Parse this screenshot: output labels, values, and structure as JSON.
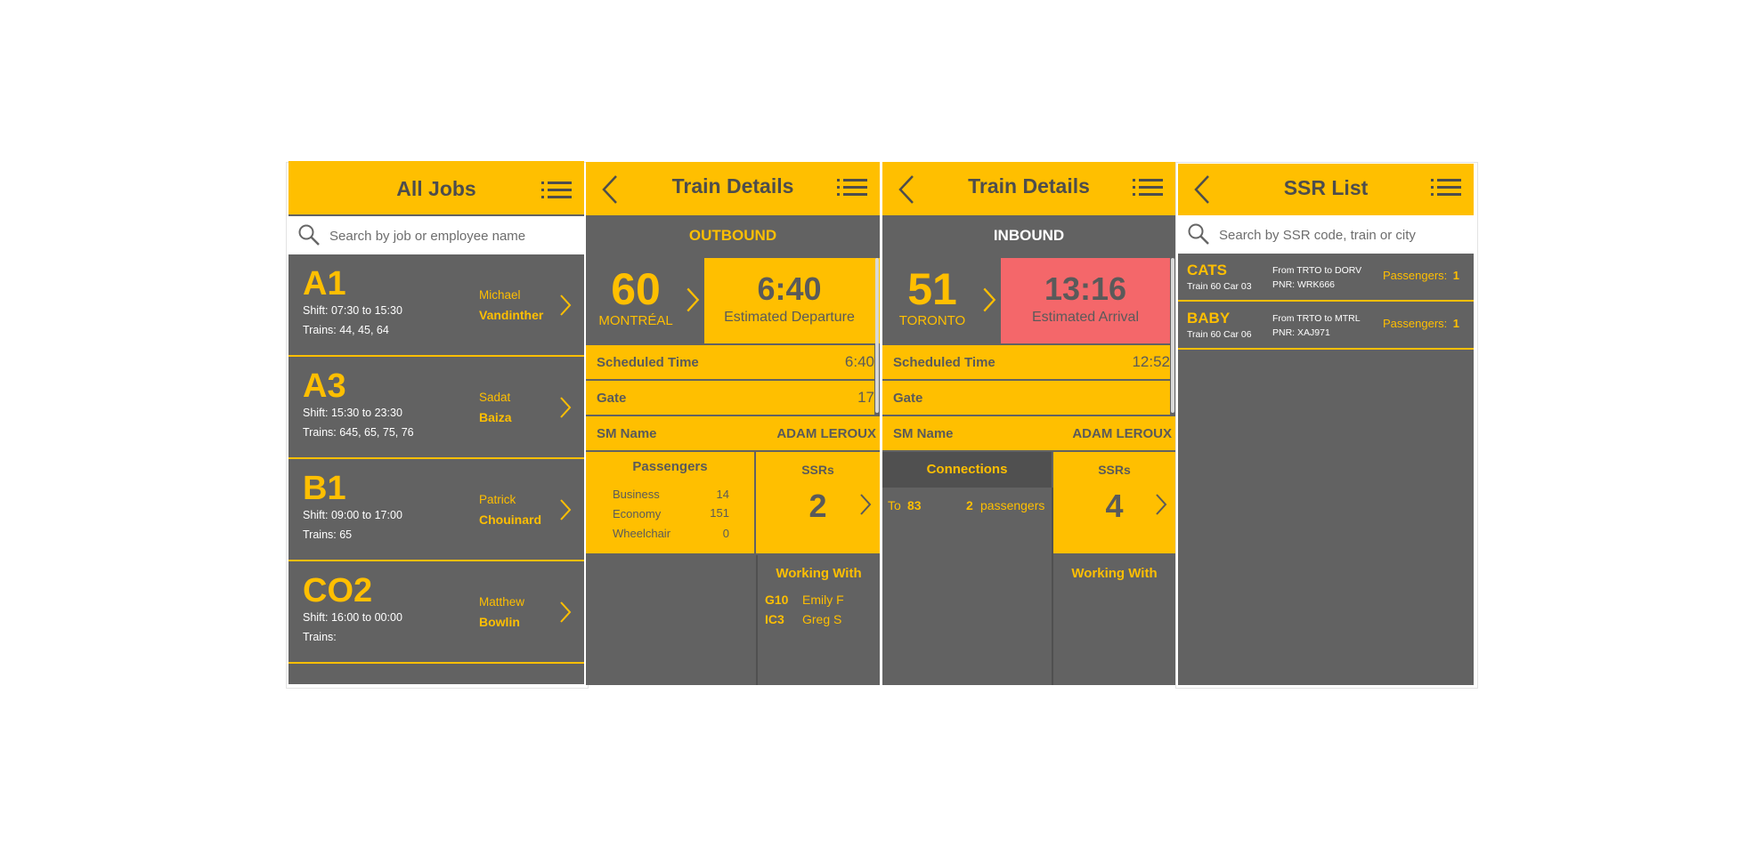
{
  "jobs_screen": {
    "title": "All Jobs",
    "search_placeholder": "Search by job or employee name",
    "jobs": [
      {
        "code": "A1",
        "shift": "Shift: 07:30 to 15:30",
        "trains": "Trains: 44, 45, 64",
        "first_name": "Michael",
        "last_name": "Vandinther"
      },
      {
        "code": "A3",
        "shift": "Shift: 15:30 to 23:30",
        "trains": "Trains: 645, 65, 75, 76",
        "first_name": "Sadat",
        "last_name": "Baiza"
      },
      {
        "code": "B1",
        "shift": "Shift: 09:00 to 17:00",
        "trains": "Trains: 65",
        "first_name": "Patrick",
        "last_name": "Chouinard"
      },
      {
        "code": "CO2",
        "shift": "Shift: 16:00 to 00:00",
        "trains": "Trains:",
        "first_name": "Matthew",
        "last_name": "Bowlin"
      }
    ]
  },
  "outbound_screen": {
    "title": "Train Details",
    "direction": "OUTBOUND",
    "train_number": "60",
    "city": "MONTRÉAL",
    "time": "6:40",
    "time_label": "Estimated Departure",
    "scheduled_label": "Scheduled Time",
    "scheduled_value": "6:40",
    "gate_label": "Gate",
    "gate_value": "17",
    "sm_label": "SM Name",
    "sm_value": "ADAM LEROUX",
    "passengers": {
      "title": "Passengers",
      "rows": [
        {
          "label": "Business",
          "value": "14"
        },
        {
          "label": "Economy",
          "value": "151"
        },
        {
          "label": "Wheelchair",
          "value": "0"
        }
      ]
    },
    "ssrs_title": "SSRs",
    "ssrs_count": "2",
    "working_with": {
      "title": "Working With",
      "rows": [
        {
          "code": "G10",
          "name": "Emily F"
        },
        {
          "code": "IC3",
          "name": "Greg S"
        }
      ]
    }
  },
  "inbound_screen": {
    "title": "Train Details",
    "direction": "INBOUND",
    "train_number": "51",
    "city": "TORONTO",
    "time": "13:16",
    "time_label": "Estimated Arrival",
    "scheduled_label": "Scheduled Time",
    "scheduled_value": "12:52",
    "gate_label": "Gate",
    "sm_label": "SM Name",
    "sm_value": "ADAM LEROUX",
    "connections": {
      "title": "Connections",
      "to_label": "To",
      "to_train": "83",
      "count": "2",
      "unit": "passengers"
    },
    "ssrs_title": "SSRs",
    "ssrs_count": "4",
    "working_with_title": "Working With"
  },
  "ssr_screen": {
    "title": "SSR List",
    "search_placeholder": "Search by SSR code, train or city",
    "items": [
      {
        "code": "CATS",
        "train": "Train 60 Car 03",
        "from": "From TRTO to DORV",
        "pnr": "PNR: WRK666",
        "pax_label": "Passengers:",
        "pax_value": "1"
      },
      {
        "code": "BABY",
        "train": "Train 60 Car 06",
        "from": "From TRTO to MTRL",
        "pnr": "PNR: XAJ971",
        "pax_label": "Passengers:",
        "pax_value": "1"
      }
    ]
  },
  "colors": {
    "accent": "#ffbf00",
    "panel": "#626262",
    "alert": "#f4676a",
    "text_dark": "#5a5a5a"
  }
}
